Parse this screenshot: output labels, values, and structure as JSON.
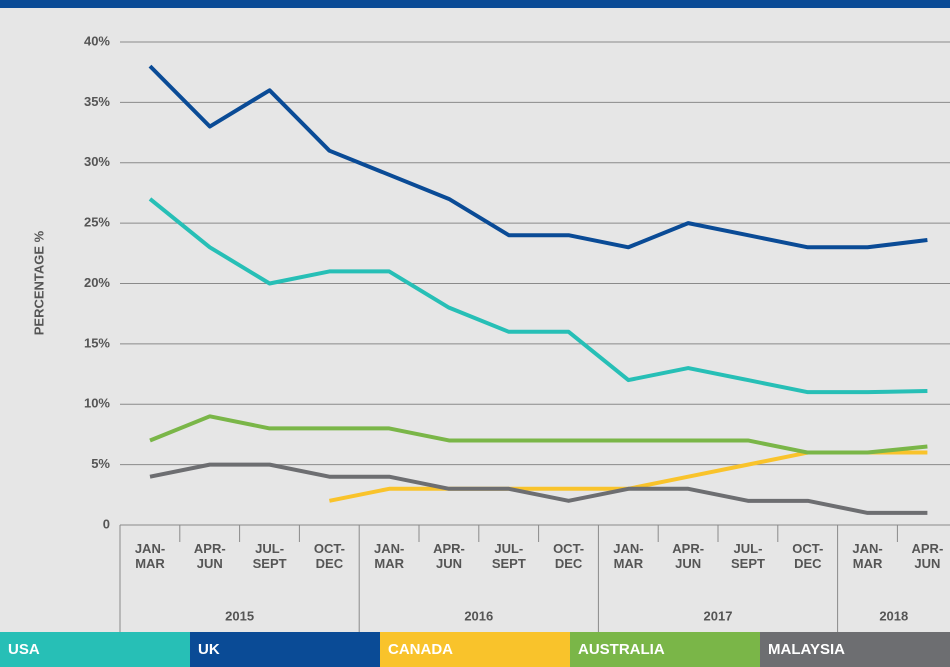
{
  "chart_data": {
    "type": "line",
    "ylabel": "PERCENTAGE %",
    "categories": [
      "JAN-\nMAR",
      "APR-\nJUN",
      "JUL-\nSEPT",
      "OCT-\nDEC",
      "JAN-\nMAR",
      "APR-\nJUN",
      "JUL-\nSEPT",
      "OCT-\nDEC",
      "JAN-\nMAR",
      "APR-\nJUN",
      "JUL-\nSEPT",
      "OCT-\nDEC",
      "JAN-\nMAR",
      "APR-\nJUN"
    ],
    "years": [
      "2015",
      "2016",
      "2017",
      "2018"
    ],
    "ylim": [
      0,
      40
    ],
    "yticks": [
      0,
      {
        "value": 5,
        "label": "5%"
      },
      {
        "value": 10,
        "label": "10%"
      },
      {
        "value": 15,
        "label": "15%"
      },
      {
        "value": 20,
        "label": "20%"
      },
      {
        "value": 25,
        "label": "25%"
      },
      {
        "value": 30,
        "label": "30%"
      },
      {
        "value": 35,
        "label": "35%"
      },
      {
        "value": 40,
        "label": "40%"
      }
    ],
    "grid": true,
    "series": [
      {
        "name": "USA",
        "color": "#27bfb6",
        "values": [
          27,
          23,
          20,
          21,
          21,
          18,
          16,
          16,
          12,
          13,
          12,
          11,
          11,
          11.1
        ]
      },
      {
        "name": "UK",
        "color": "#0a4b96",
        "values": [
          38,
          33,
          36,
          31,
          29,
          27,
          24,
          24,
          23,
          25,
          24,
          23,
          23,
          23.6
        ]
      },
      {
        "name": "CANADA",
        "color": "#f9c32b",
        "values": [
          null,
          null,
          null,
          2,
          3,
          3,
          3,
          3,
          3,
          4,
          5,
          6,
          6,
          6
        ]
      },
      {
        "name": "AUSTRALIA",
        "color": "#7ab648",
        "values": [
          7,
          9,
          8,
          8,
          8,
          7,
          7,
          7,
          7,
          7,
          7,
          6,
          6,
          6.5
        ]
      },
      {
        "name": "MALAYSIA",
        "color": "#6d6e71",
        "values": [
          4,
          5,
          5,
          4,
          4,
          3,
          3,
          2,
          3,
          3,
          2,
          2,
          1,
          1
        ]
      }
    ]
  }
}
